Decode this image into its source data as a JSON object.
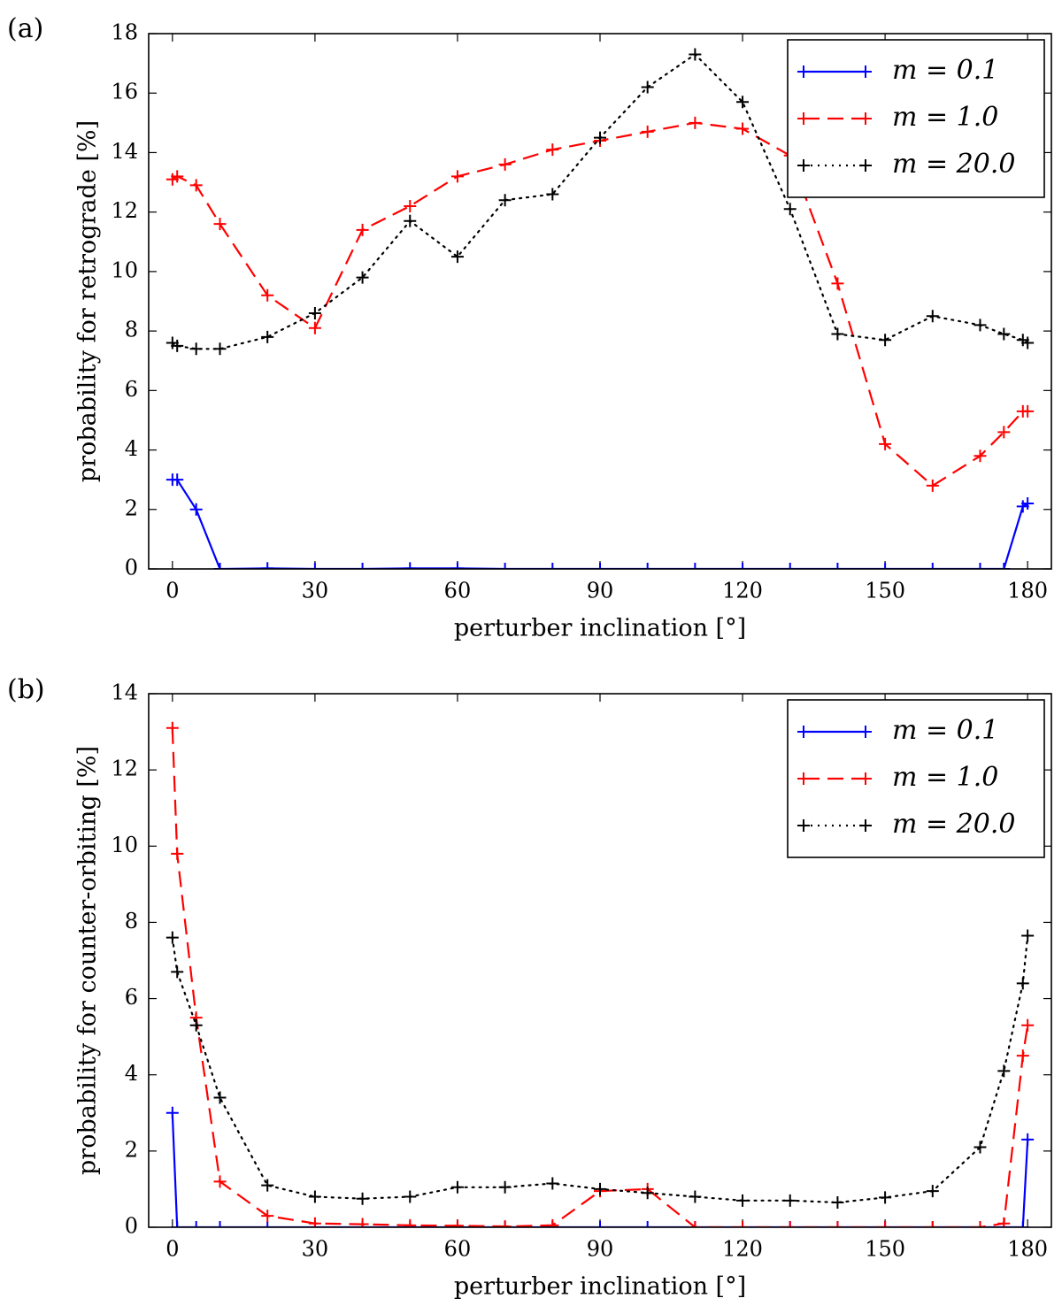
{
  "chart_data": [
    {
      "panel_label": "(a)",
      "type": "line",
      "xlabel": "perturber inclination [°]",
      "ylabel": "probability for retrograde [%]",
      "xlim": [
        -5,
        185
      ],
      "ylim": [
        0,
        18
      ],
      "xticks": [
        0,
        30,
        60,
        90,
        120,
        150,
        180
      ],
      "yticks": [
        0,
        2,
        4,
        6,
        8,
        10,
        12,
        14,
        16,
        18
      ],
      "legend_position": "top-right",
      "series": [
        {
          "name": "m = 0.1",
          "color": "#0000ff",
          "style": "solid",
          "x": [
            0,
            1,
            5,
            10,
            20,
            30,
            40,
            50,
            60,
            70,
            80,
            90,
            100,
            110,
            120,
            130,
            140,
            150,
            160,
            170,
            175,
            179,
            180
          ],
          "y": [
            3.0,
            3.0,
            2.0,
            0,
            0.02,
            0,
            0,
            0.02,
            0.02,
            0,
            0,
            0,
            0,
            0,
            0,
            0,
            0,
            0,
            0,
            0,
            0,
            2.1,
            2.2
          ]
        },
        {
          "name": "m = 1.0",
          "color": "#ff0000",
          "style": "dashed",
          "x": [
            0,
            1,
            5,
            10,
            20,
            30,
            40,
            50,
            60,
            70,
            80,
            90,
            100,
            110,
            120,
            130,
            140,
            150,
            160,
            170,
            175,
            179,
            180
          ],
          "y": [
            13.1,
            13.2,
            12.9,
            11.6,
            9.2,
            8.1,
            11.4,
            12.2,
            13.2,
            13.6,
            14.1,
            14.4,
            14.7,
            15.0,
            14.8,
            13.9,
            9.6,
            4.2,
            2.8,
            3.8,
            4.6,
            5.3,
            5.3
          ]
        },
        {
          "name": "m = 20.0",
          "color": "#000000",
          "style": "dotted",
          "x": [
            0,
            1,
            5,
            10,
            20,
            30,
            40,
            50,
            60,
            70,
            80,
            90,
            100,
            110,
            120,
            130,
            140,
            150,
            160,
            170,
            175,
            179,
            180
          ],
          "y": [
            7.6,
            7.5,
            7.4,
            7.4,
            7.8,
            8.6,
            9.8,
            11.7,
            10.5,
            12.4,
            12.6,
            14.5,
            16.2,
            17.3,
            15.7,
            12.1,
            7.9,
            7.7,
            8.5,
            8.2,
            7.9,
            7.7,
            7.6
          ]
        }
      ]
    },
    {
      "panel_label": "(b)",
      "type": "line",
      "xlabel": "perturber inclination [°]",
      "ylabel": "probability for counter-orbiting [%]",
      "xlim": [
        -5,
        185
      ],
      "ylim": [
        0,
        14
      ],
      "xticks": [
        0,
        30,
        60,
        90,
        120,
        150,
        180
      ],
      "yticks": [
        0,
        2,
        4,
        6,
        8,
        10,
        12,
        14
      ],
      "legend_position": "top-right",
      "series": [
        {
          "name": "m = 0.1",
          "color": "#0000ff",
          "style": "solid",
          "x": [
            0,
            1,
            5,
            10,
            20,
            30,
            40,
            50,
            60,
            70,
            80,
            90,
            100,
            110,
            120,
            130,
            140,
            150,
            160,
            170,
            175,
            179,
            180
          ],
          "y": [
            3.0,
            0,
            0,
            0,
            0,
            0,
            0,
            0,
            0,
            0,
            0,
            0,
            0,
            0,
            0,
            0,
            0,
            0,
            0,
            0,
            0,
            0,
            2.3
          ]
        },
        {
          "name": "m = 1.0",
          "color": "#ff0000",
          "style": "dashed",
          "x": [
            0,
            1,
            5,
            10,
            20,
            30,
            40,
            50,
            60,
            70,
            80,
            90,
            100,
            110,
            120,
            130,
            140,
            150,
            160,
            170,
            175,
            179,
            180
          ],
          "y": [
            13.1,
            9.8,
            5.5,
            1.2,
            0.3,
            0.1,
            0.08,
            0.05,
            0.04,
            0.02,
            0.05,
            0.95,
            1.0,
            0,
            0,
            0,
            0,
            0,
            0,
            0,
            0.1,
            4.5,
            5.3
          ]
        },
        {
          "name": "m = 20.0",
          "color": "#000000",
          "style": "dotted",
          "x": [
            0,
            1,
            5,
            10,
            20,
            30,
            40,
            50,
            60,
            70,
            80,
            90,
            100,
            110,
            120,
            130,
            140,
            150,
            160,
            170,
            175,
            179,
            180
          ],
          "y": [
            7.6,
            6.7,
            5.3,
            3.4,
            1.1,
            0.8,
            0.75,
            0.8,
            1.05,
            1.05,
            1.15,
            1.0,
            0.9,
            0.8,
            0.7,
            0.7,
            0.65,
            0.78,
            0.95,
            2.1,
            4.1,
            6.4,
            7.65
          ]
        }
      ]
    }
  ]
}
